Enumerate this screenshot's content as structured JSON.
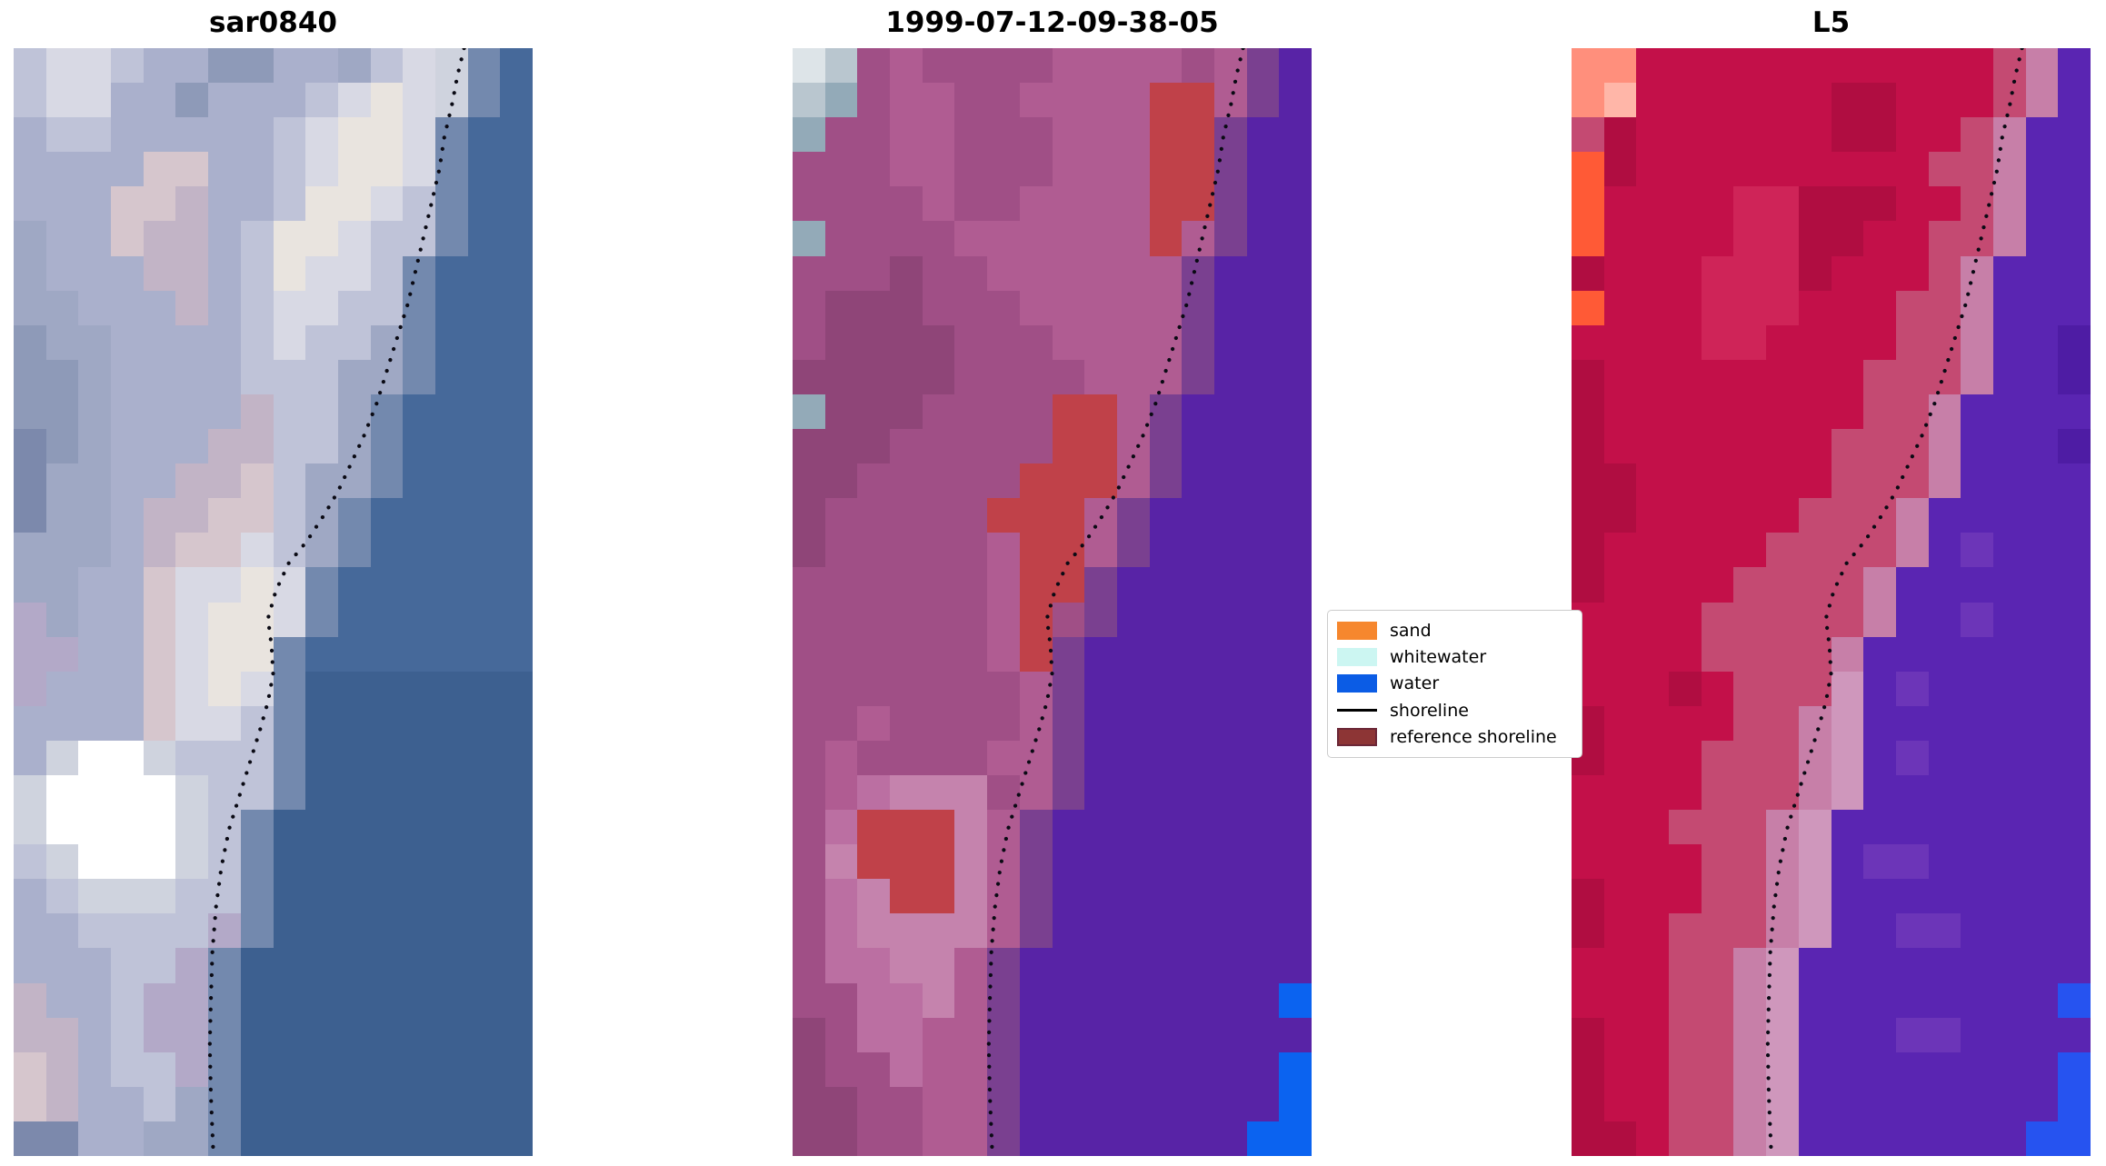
{
  "figure": {
    "background": "#ffffff"
  },
  "panels": [
    {
      "title": "sar0840",
      "palette": {
        "a": "#aab0cc",
        "b": "#bfc3d8",
        "c": "#d8d9e4",
        "d": "#8e9ab8",
        "e": "#7c89ac",
        "f": "#e9e4df",
        "g": "#d6c6cd",
        "h": "#c2b4c6",
        "i": "#9fa8c4",
        "q": "#b3a9c8",
        "s": "#cfd3de",
        "t": "#7389ae",
        "F": "#ffffff",
        "w": "#46699a",
        "v": "#3d6090"
      },
      "rows": [
        "bccbaaddaaibcstw",
        "bccaadaaabcfcstw",
        "abbaaaaabcffctww",
        "aaaaggaabcffctww",
        "aaagghaabffcbtww",
        "iaaghhabffcbbtww",
        "iaaahhabfccbtwww",
        "iiaaahabccbbtwww",
        "diiaaaabcbbitwww",
        "ddiaaaabbbiitwww",
        "ddiaaaahbbitwwww",
        "ediaaahhbbitwwww",
        "eiiaahhgbiitwwww",
        "eiiahhggbitwwwww",
        "iiiahggcbitwwwww",
        "iiaagccfctwwwwww",
        "qiaagcffctwwwwww",
        "qqaagcfftwwwwwww",
        "qaaagcfctvvvvvvv",
        "aaaagccbtvvvvvvv",
        "asFFsbbbtvvvvvvv",
        "sFFFFsbbtvvvvvvv",
        "sFFFFsbtvvvvvvvv",
        "bsFFFsbtvvvvvvvv",
        "absssbbtvvvvvvvv",
        "aabbbbqtvvvvvvvv",
        "aaabbqtvvvvvvvvv",
        "haabqqtvvvvvvvvv",
        "hhabqqtvvvvvvvvv",
        "ghabbqtvvvvvvvvv",
        "ghaabitvvvvvvvvv",
        "eeaaiitvvvvvvvvv"
      ]
    },
    {
      "title": "1999-07-12-09-38-05",
      "palette": {
        "G": "#dde4e8",
        "g": "#b9c6cf",
        "h": "#93aab8",
        "m": "#a04f86",
        "n": "#8f4578",
        "o": "#b05c92",
        "k": "#bb6fa2",
        "l": "#c583ad",
        "d": "#7a4090",
        "R": "#c04149",
        "p": "#5823a6",
        "B": "#0b63f0"
      },
      "rows": [
        "Ggmommmmoooomodp",
        "ghmoommooooRRodp",
        "hmmoommmoooRRdpp",
        "mmmoommmoooRRdpp",
        "mmmmommooooRRdpp",
        "hmmmmooooooRodpp",
        "mmmnmmoooooodppp",
        "mnnnmmmooooodppp",
        "mnnnnmmmoooodppp",
        "nnnnnmmmmooodppp",
        "hnnnmmmmRRodpppp",
        "nnnmmmmmRRodpppp",
        "nnmmmmmRRRodpppp",
        "nmmmmmRRRodppppp",
        "nmmmmmoRRodppppp",
        "mmmmmmoRRdpppppp",
        "mmmmmmoRmdpppppp",
        "mmmmmmoRdppppppp",
        "mmmmmmmodppppppp",
        "mmommmmodppppppp",
        "mommmmoodppppppp",
        "moklllmodppppppp",
        "mkRRRlodpppppppp",
        "mlRRRlodpppppppp",
        "mklRRlodpppppppp",
        "mkllllodpppppppp",
        "mkkllodppppppppp",
        "mmkklodppppppppB",
        "nmkkoodppppppppp",
        "nmmkoodppppppppB",
        "nnmmoodppppppppB",
        "nnmmoodpppppppBB"
      ]
    },
    {
      "title": "L5",
      "palette": {
        "r": "#c31049",
        "s": "#b00d41",
        "u": "#cf2458",
        "x": "#c44a72",
        "P": "#c77fa8",
        "Q": "#cf97bc",
        "S": "#ff8f7c",
        "T": "#ffb6a8",
        "O": "#ff5a36",
        "p": "#5a25b2",
        "q": "#4e1ca4",
        "e": "#6c35b8",
        "B": "#2653f0"
      },
      "rows": [
        "SSrrrrrrrrrrrxPp",
        "STrrrrrrssrrrxPp",
        "xsrrrrrrssrrxPpp",
        "OsrrrrrrrrrxxPpp",
        "OrrrruusssrrxPpp",
        "OrrrruussrrxxPpp",
        "srrruuusrrrxPppp",
        "OrrruuurrrxxPppp",
        "rrrruurrrrxxPppq",
        "srrrrrrrrxxxPppq",
        "srrrrrrrrxxPpppp",
        "srrrrrrrxxxPpppq",
        "ssrrrrrrxxxPpppp",
        "ssrrrrrxxxPppppp",
        "srrrrrxxxxPpeppp",
        "srrrrxxxxPpppppp",
        "rrrrxxxxxPppeppp",
        "rrrrxxxxPppppppp",
        "rrrsrxxxQpeppppp",
        "srrrrxxPQppppppp",
        "srrrxxxPQpeppppp",
        "rrrrxxxPQppppppp",
        "rrrxxxPQpppppppp",
        "rrrrxxPQpeeppppp",
        "srrrxxPQpppppppp",
        "srrxxxPQppeepppp",
        "rrrxxPQppppppppp",
        "rrrxxPQppppppppB",
        "srrxxPQpppeepppp",
        "srrxxPQppppppppB",
        "srrxxPQppppppppB",
        "ssrxxPQpppppppBB"
      ]
    }
  ],
  "shoreline_path": [
    [
      0.868,
      0.0
    ],
    [
      0.855,
      0.025
    ],
    [
      0.845,
      0.05
    ],
    [
      0.83,
      0.08
    ],
    [
      0.82,
      0.11
    ],
    [
      0.805,
      0.14
    ],
    [
      0.79,
      0.17
    ],
    [
      0.775,
      0.2
    ],
    [
      0.76,
      0.23
    ],
    [
      0.74,
      0.26
    ],
    [
      0.72,
      0.29
    ],
    [
      0.7,
      0.32
    ],
    [
      0.675,
      0.35
    ],
    [
      0.65,
      0.375
    ],
    [
      0.625,
      0.4
    ],
    [
      0.6,
      0.42
    ],
    [
      0.565,
      0.445
    ],
    [
      0.53,
      0.465
    ],
    [
      0.505,
      0.49
    ],
    [
      0.49,
      0.515
    ],
    [
      0.497,
      0.54
    ],
    [
      0.5,
      0.565
    ],
    [
      0.49,
      0.59
    ],
    [
      0.475,
      0.615
    ],
    [
      0.455,
      0.645
    ],
    [
      0.435,
      0.675
    ],
    [
      0.415,
      0.705
    ],
    [
      0.4,
      0.74
    ],
    [
      0.39,
      0.775
    ],
    [
      0.383,
      0.815
    ],
    [
      0.38,
      0.86
    ],
    [
      0.378,
      0.9
    ],
    [
      0.38,
      0.945
    ],
    [
      0.385,
      1.0
    ]
  ],
  "shoreline_style": {
    "color": "#0a0a14",
    "dot_size": 4.2,
    "dot_spacing": 12.5
  },
  "legend": {
    "entries": [
      {
        "label": "sand",
        "kind": "patch",
        "color": "#f6872e"
      },
      {
        "label": "whitewater",
        "kind": "patch",
        "color": "#ccf6f2"
      },
      {
        "label": "water",
        "kind": "patch",
        "color": "#0b5ce5"
      },
      {
        "label": "shoreline",
        "kind": "line",
        "color": "#000000"
      },
      {
        "label": "reference shoreline",
        "kind": "patch",
        "color": "#8d3535",
        "border": "#6b2737"
      }
    ]
  },
  "chart_data": {
    "type": "image",
    "subplots": [
      {
        "title": "sar0840"
      },
      {
        "title": "1999-07-12-09-38-05"
      },
      {
        "title": "L5"
      }
    ],
    "legend_entries": [
      "sand",
      "whitewater",
      "water",
      "shoreline",
      "reference shoreline"
    ],
    "layout": {
      "panels": 3,
      "axes": "off",
      "legend_position": "right-of-middle-panel"
    },
    "note": "pixel color grids for each panel are stored in panels[].rows with panels[].palette"
  }
}
